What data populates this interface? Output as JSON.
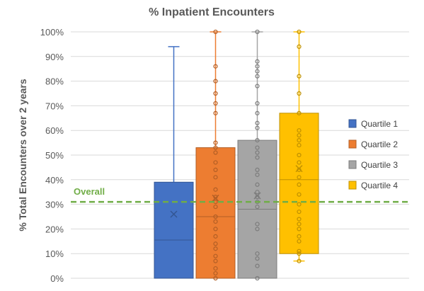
{
  "chart_data": {
    "type": "boxplot",
    "title": "% Inpatient Encounters",
    "ylabel": "% Total Encounters over 2 years",
    "xlabel": "",
    "ylim": [
      0,
      100
    ],
    "yticks": [
      0,
      10,
      20,
      30,
      40,
      50,
      60,
      70,
      80,
      90,
      100
    ],
    "ytick_labels": [
      "0%",
      "10%",
      "20%",
      "30%",
      "40%",
      "50%",
      "60%",
      "70%",
      "80%",
      "90%",
      "100%"
    ],
    "grid": "horizontal",
    "legend_position": "right",
    "reference_line": {
      "label": "Overall",
      "value": 31,
      "color": "#70ad47",
      "style": "dashed"
    },
    "series": [
      {
        "name": "Quartile 1",
        "color": "#4472c4",
        "min": 0,
        "q1": 0,
        "median": 15.5,
        "q3": 39,
        "max": 94,
        "mean": 26,
        "points": []
      },
      {
        "name": "Quartile 2",
        "color": "#ed7d31",
        "min": 0,
        "q1": 0,
        "median": 25,
        "q3": 53,
        "max": 100,
        "mean": 32.5,
        "points": [
          100,
          86,
          80,
          75,
          71,
          67,
          55,
          53,
          51,
          47,
          44,
          41,
          36,
          33,
          31,
          29,
          25,
          23,
          20,
          17,
          14,
          12,
          9,
          7,
          4,
          2,
          0
        ]
      },
      {
        "name": "Quartile 3",
        "color": "#a5a5a5",
        "min": 0,
        "q1": 0,
        "median": 28,
        "q3": 56,
        "max": 100,
        "mean": 33.5,
        "points": [
          100,
          88,
          86,
          84,
          82,
          78,
          71,
          67,
          63,
          61,
          56,
          53,
          51,
          49,
          44,
          42,
          38,
          35,
          33,
          31,
          29,
          22,
          20,
          10,
          8,
          5,
          0
        ]
      },
      {
        "name": "Quartile 4",
        "color": "#ffc000",
        "min": 7,
        "q1": 10,
        "median": 40,
        "q3": 67,
        "max": 100,
        "mean": 44.5,
        "points": [
          100,
          94,
          82,
          75,
          67,
          60,
          58,
          56,
          54,
          50,
          47,
          44,
          41,
          38,
          34,
          30,
          27,
          24,
          22,
          20,
          17,
          15,
          11,
          10,
          7
        ]
      }
    ]
  }
}
